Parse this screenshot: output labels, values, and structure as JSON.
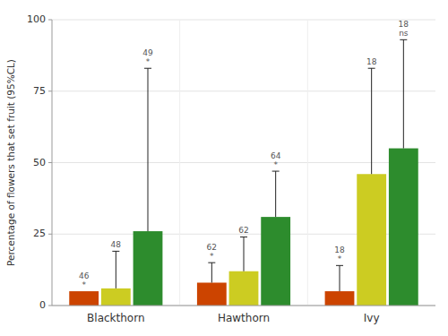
{
  "chart_data": {
    "type": "bar",
    "categories": [
      "Blackthorn",
      "Hawthorn",
      "Ivy"
    ],
    "series": [
      {
        "color": "#cc4400",
        "values": [
          5.0,
          8.0,
          5.0
        ],
        "error_upper": [
          0.0,
          7.0,
          9.0
        ],
        "n_labels": [
          "46",
          "62",
          "18"
        ],
        "sig_labels": [
          "*",
          "*",
          "*"
        ]
      },
      {
        "color": "#cccc22",
        "values": [
          6.0,
          12.0,
          46.0
        ],
        "error_upper": [
          13.0,
          12.0,
          37.0
        ],
        "n_labels": [
          "48",
          "62",
          "18"
        ],
        "sig_labels": [
          null,
          null,
          null
        ]
      },
      {
        "color": "#2d8c2d",
        "values": [
          26.0,
          31.0,
          55.0
        ],
        "error_upper": [
          57.0,
          16.0,
          38.0
        ],
        "n_labels": [
          "49",
          "64",
          "18"
        ],
        "sig_labels": [
          "*",
          "*",
          "ns"
        ]
      }
    ],
    "y_label": "Percentage of flowers that set fruit (95%CL)",
    "ylim": [
      0,
      100
    ],
    "yticks": [
      0,
      25,
      50,
      75,
      100
    ],
    "grid": true
  }
}
